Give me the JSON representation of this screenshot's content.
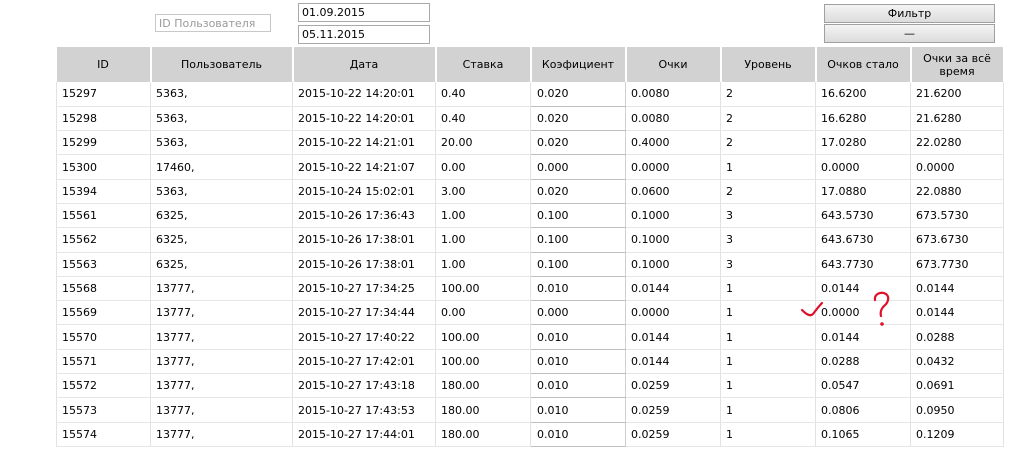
{
  "filters": {
    "user_id_placeholder": "ID Пользователя",
    "date_from": "01.09.2015",
    "date_to": "05.11.2015",
    "filter_button_label": "Фильтр",
    "reset_button_label": "—"
  },
  "table": {
    "columns": [
      "ID",
      "Пользователь",
      "Дата",
      "Ставка",
      "Коэфициент",
      "Очки",
      "Уровень",
      "Очков стало",
      "Очки за всё время"
    ],
    "rows": [
      [
        "15297",
        "5363,",
        "2015-10-22 14:20:01",
        "0.40",
        "0.020",
        "0.0080",
        "2",
        "16.6200",
        "21.6200"
      ],
      [
        "15298",
        "5363,",
        "2015-10-22 14:20:01",
        "0.40",
        "0.020",
        "0.0080",
        "2",
        "16.6280",
        "21.6280"
      ],
      [
        "15299",
        "5363,",
        "2015-10-22 14:21:01",
        "20.00",
        "0.020",
        "0.4000",
        "2",
        "17.0280",
        "22.0280"
      ],
      [
        "15300",
        "17460,",
        "2015-10-22 14:21:07",
        "0.00",
        "0.000",
        "0.0000",
        "1",
        "0.0000",
        "0.0000"
      ],
      [
        "15394",
        "5363,",
        "2015-10-24 15:02:01",
        "3.00",
        "0.020",
        "0.0600",
        "2",
        "17.0880",
        "22.0880"
      ],
      [
        "15561",
        "6325,",
        "2015-10-26 17:36:43",
        "1.00",
        "0.100",
        "0.1000",
        "3",
        "643.5730",
        "673.5730"
      ],
      [
        "15562",
        "6325,",
        "2015-10-26 17:38:01",
        "1.00",
        "0.100",
        "0.1000",
        "3",
        "643.6730",
        "673.6730"
      ],
      [
        "15563",
        "6325,",
        "2015-10-26 17:38:01",
        "1.00",
        "0.100",
        "0.1000",
        "3",
        "643.7730",
        "673.7730"
      ],
      [
        "15568",
        "13777,",
        "2015-10-27 17:34:25",
        "100.00",
        "0.010",
        "0.0144",
        "1",
        "0.0144",
        "0.0144"
      ],
      [
        "15569",
        "13777,",
        "2015-10-27 17:34:44",
        "0.00",
        "0.000",
        "0.0000",
        "1",
        "0.0000",
        "0.0144"
      ],
      [
        "15570",
        "13777,",
        "2015-10-27 17:40:22",
        "100.00",
        "0.010",
        "0.0144",
        "1",
        "0.0144",
        "0.0288"
      ],
      [
        "15571",
        "13777,",
        "2015-10-27 17:42:01",
        "100.00",
        "0.010",
        "0.0144",
        "1",
        "0.0288",
        "0.0432"
      ],
      [
        "15572",
        "13777,",
        "2015-10-27 17:43:18",
        "180.00",
        "0.010",
        "0.0259",
        "1",
        "0.0547",
        "0.0691"
      ],
      [
        "15573",
        "13777,",
        "2015-10-27 17:43:53",
        "180.00",
        "0.010",
        "0.0259",
        "1",
        "0.0806",
        "0.0950"
      ],
      [
        "15574",
        "13777,",
        "2015-10-27 17:44:01",
        "180.00",
        "0.010",
        "0.0259",
        "1",
        "0.1065",
        "0.1209"
      ]
    ]
  },
  "colors": {
    "header_bg": "#d2d2d2",
    "annotation_red": "#e0102a"
  }
}
